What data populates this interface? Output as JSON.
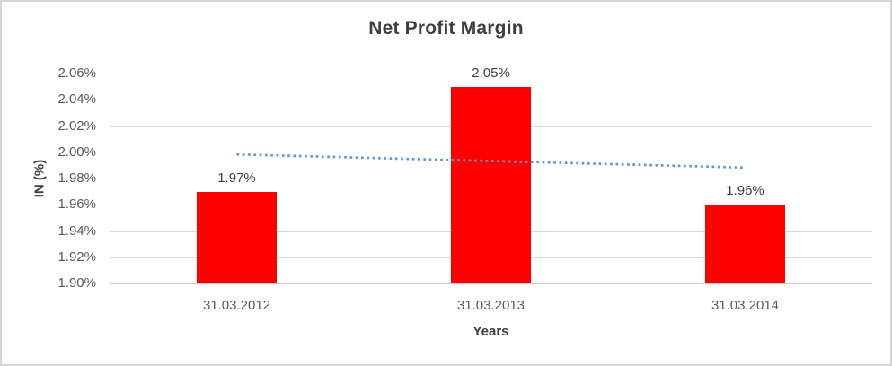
{
  "chart_data": {
    "type": "bar",
    "title": "Net Profit Margin",
    "xlabel": "Years",
    "ylabel": "IN (%)",
    "categories": [
      "31.03.2012",
      "31.03.2013",
      "31.03.2014"
    ],
    "values": [
      1.97,
      2.05,
      1.96
    ],
    "data_labels": [
      "1.97%",
      "2.05%",
      "1.96%"
    ],
    "yticks": [
      {
        "value": 2.06,
        "label": "2.06%"
      },
      {
        "value": 2.04,
        "label": "2.04%"
      },
      {
        "value": 2.02,
        "label": "2.02%"
      },
      {
        "value": 2.0,
        "label": "2.00%"
      },
      {
        "value": 1.98,
        "label": "1.98%"
      },
      {
        "value": 1.96,
        "label": "1.96%"
      },
      {
        "value": 1.94,
        "label": "1.94%"
      },
      {
        "value": 1.92,
        "label": "1.92%"
      },
      {
        "value": 1.9,
        "label": "1.90%"
      }
    ],
    "ylim": [
      1.9,
      2.06
    ],
    "grid": true,
    "legend": false,
    "bar_color": "#ff0000",
    "gridline_color": "#d9d9d9",
    "trendline": {
      "type": "linear",
      "style": "dotted",
      "color": "#5b9bd5"
    }
  }
}
